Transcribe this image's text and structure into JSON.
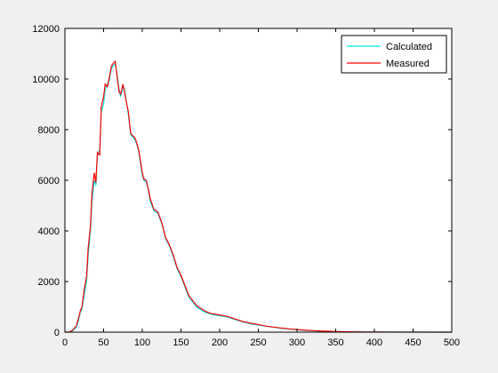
{
  "figure": {
    "background": "#f0f0f0"
  },
  "chart_data": {
    "type": "line",
    "title": "",
    "xlabel": "",
    "ylabel": "",
    "xlim": [
      0,
      500
    ],
    "ylim": [
      0,
      12000
    ],
    "xticks": [
      0,
      50,
      100,
      150,
      200,
      250,
      300,
      350,
      400,
      450,
      500
    ],
    "yticks": [
      0,
      2000,
      4000,
      6000,
      8000,
      10000,
      12000
    ],
    "grid": false,
    "legend_position": "top-right",
    "series": [
      {
        "name": "Calculated",
        "color": "#00e5e5",
        "x": [
          0,
          5,
          10,
          15,
          18,
          20,
          22,
          25,
          28,
          30,
          33,
          35,
          38,
          40,
          42,
          45,
          47,
          50,
          52,
          55,
          57,
          60,
          62,
          65,
          67,
          70,
          72,
          75,
          77,
          80,
          82,
          85,
          88,
          90,
          92,
          95,
          98,
          100,
          102,
          105,
          108,
          110,
          115,
          120,
          125,
          130,
          135,
          140,
          145,
          150,
          155,
          160,
          165,
          170,
          175,
          180,
          185,
          190,
          200,
          210,
          220,
          230,
          240,
          250,
          260,
          270,
          280,
          290,
          300,
          310,
          320,
          330,
          340,
          350,
          360,
          370,
          380,
          390,
          400,
          450,
          500
        ],
        "y": [
          0,
          0,
          50,
          200,
          500,
          800,
          900,
          1500,
          2000,
          3000,
          4000,
          5200,
          6000,
          5800,
          7000,
          7200,
          8700,
          9000,
          9600,
          9800,
          9900,
          10400,
          10500,
          10600,
          10300,
          9600,
          9300,
          9700,
          9600,
          9000,
          8600,
          7800,
          7700,
          7650,
          7500,
          7200,
          6600,
          6200,
          6000,
          5950,
          5600,
          5200,
          4800,
          4700,
          4300,
          3700,
          3400,
          3000,
          2500,
          2200,
          1800,
          1400,
          1200,
          1000,
          900,
          800,
          750,
          700,
          650,
          600,
          500,
          400,
          330,
          280,
          230,
          190,
          150,
          120,
          90,
          70,
          50,
          40,
          30,
          20,
          15,
          10,
          8,
          5,
          3,
          1,
          0
        ]
      },
      {
        "name": "Measured",
        "color": "#ff0000",
        "x": [
          0,
          5,
          10,
          15,
          18,
          20,
          22,
          25,
          28,
          30,
          33,
          35,
          38,
          40,
          42,
          45,
          47,
          50,
          52,
          55,
          57,
          60,
          62,
          65,
          67,
          70,
          72,
          75,
          77,
          80,
          82,
          85,
          88,
          90,
          92,
          95,
          98,
          100,
          102,
          105,
          108,
          110,
          115,
          120,
          125,
          130,
          135,
          140,
          145,
          150,
          155,
          160,
          165,
          170,
          175,
          180,
          185,
          190,
          200,
          210,
          220,
          230,
          240,
          250,
          260,
          270,
          280,
          290,
          300,
          310,
          320,
          330,
          340,
          350,
          360,
          370,
          380,
          390,
          400,
          450,
          500
        ],
        "y": [
          0,
          0,
          80,
          250,
          600,
          850,
          1000,
          1700,
          2200,
          3300,
          4200,
          5500,
          6300,
          5900,
          7100,
          7000,
          8900,
          9300,
          9800,
          9700,
          10000,
          10500,
          10600,
          10700,
          10200,
          9500,
          9400,
          9800,
          9500,
          9000,
          8700,
          7850,
          7750,
          7700,
          7550,
          7250,
          6700,
          6300,
          6050,
          6000,
          5650,
          5300,
          4850,
          4750,
          4350,
          3750,
          3450,
          3050,
          2550,
          2250,
          1850,
          1450,
          1250,
          1050,
          950,
          850,
          780,
          730,
          680,
          620,
          520,
          420,
          350,
          300,
          240,
          200,
          160,
          130,
          100,
          80,
          60,
          45,
          35,
          25,
          18,
          12,
          9,
          6,
          4,
          2,
          0
        ]
      }
    ]
  }
}
